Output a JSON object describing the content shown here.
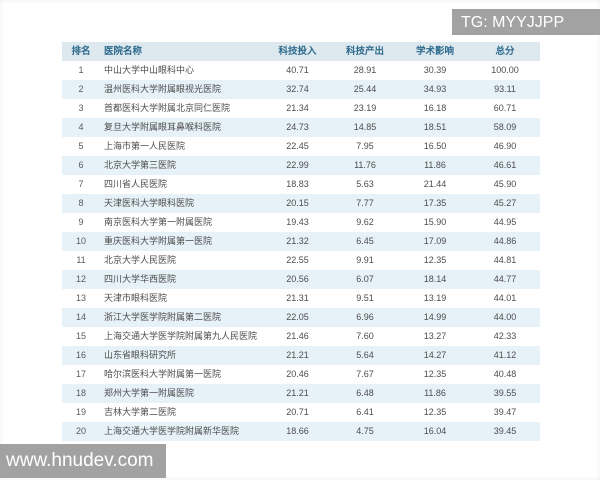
{
  "watermarks": {
    "top_right": "TG: MYYJJPP",
    "bottom_left": "www.hnudev.com"
  },
  "colors": {
    "header_bg": "#dde9ef",
    "header_text": "#2f6a8c",
    "row_alt_bg": "#e6f1f8",
    "row_bg": "#ffffff",
    "body_text": "#4d4d4d",
    "watermark_bg": "#a2a2a2",
    "watermark_text": "#ffffff"
  },
  "table": {
    "columns": [
      {
        "key": "rank",
        "label": "排名"
      },
      {
        "key": "name",
        "label": "医院名称"
      },
      {
        "key": "input",
        "label": "科技投入"
      },
      {
        "key": "output",
        "label": "科技产出"
      },
      {
        "key": "influence",
        "label": "学术影响"
      },
      {
        "key": "total",
        "label": "总分"
      }
    ],
    "rows": [
      [
        "1",
        "中山大学中山眼科中心",
        "40.71",
        "28.91",
        "30.39",
        "100.00"
      ],
      [
        "2",
        "温州医科大学附属眼视光医院",
        "32.74",
        "25.44",
        "34.93",
        "93.11"
      ],
      [
        "3",
        "首都医科大学附属北京同仁医院",
        "21.34",
        "23.19",
        "16.18",
        "60.71"
      ],
      [
        "4",
        "复旦大学附属眼耳鼻喉科医院",
        "24.73",
        "14.85",
        "18.51",
        "58.09"
      ],
      [
        "5",
        "上海市第一人民医院",
        "22.45",
        "7.95",
        "16.50",
        "46.90"
      ],
      [
        "6",
        "北京大学第三医院",
        "22.99",
        "11.76",
        "11.86",
        "46.61"
      ],
      [
        "7",
        "四川省人民医院",
        "18.83",
        "5.63",
        "21.44",
        "45.90"
      ],
      [
        "8",
        "天津医科大学眼科医院",
        "20.15",
        "7.77",
        "17.35",
        "45.27"
      ],
      [
        "9",
        "南京医科大学第一附属医院",
        "19.43",
        "9.62",
        "15.90",
        "44.95"
      ],
      [
        "10",
        "重庆医科大学附属第一医院",
        "21.32",
        "6.45",
        "17.09",
        "44.86"
      ],
      [
        "11",
        "北京大学人民医院",
        "22.55",
        "9.91",
        "12.35",
        "44.81"
      ],
      [
        "12",
        "四川大学华西医院",
        "20.56",
        "6.07",
        "18.14",
        "44.77"
      ],
      [
        "13",
        "天津市眼科医院",
        "21.31",
        "9.51",
        "13.19",
        "44.01"
      ],
      [
        "14",
        "浙江大学医学院附属第二医院",
        "22.05",
        "6.96",
        "14.99",
        "44.00"
      ],
      [
        "15",
        "上海交通大学医学院附属第九人民医院",
        "21.46",
        "7.60",
        "13.27",
        "42.33"
      ],
      [
        "16",
        "山东省眼科研究所",
        "21.21",
        "5.64",
        "14.27",
        "41.12"
      ],
      [
        "17",
        "哈尔滨医科大学附属第一医院",
        "20.46",
        "7.67",
        "12.35",
        "40.48"
      ],
      [
        "18",
        "郑州大学第一附属医院",
        "21.21",
        "6.48",
        "11.86",
        "39.55"
      ],
      [
        "19",
        "吉林大学第二医院",
        "20.71",
        "6.41",
        "12.35",
        "39.47"
      ],
      [
        "20",
        "上海交通大学医学院附属新华医院",
        "18.66",
        "4.75",
        "16.04",
        "39.45"
      ]
    ]
  }
}
